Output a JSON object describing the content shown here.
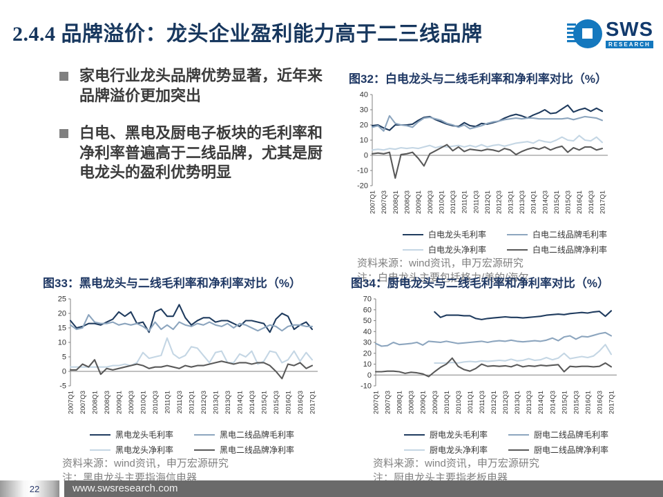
{
  "slide": {
    "title": "2.4.4 品牌溢价：龙头企业盈利能力高于二三线品牌",
    "logo": {
      "text": "SWS",
      "subtext": "RESEARCH"
    },
    "footer": {
      "page": "22",
      "url": "www.swsresearch.com"
    }
  },
  "bullets": [
    {
      "text": "家电行业龙头品牌优势显著，近年来品牌溢价更加突出"
    },
    {
      "text": "白电、黑电及厨电子板块的毛利率和净利率普遍高于二线品牌，尤其是厨电龙头的盈利优势明显"
    }
  ],
  "colors": {
    "title_navy": "#17375E",
    "figure_title_navy": "#1F3864",
    "leader_gross": "#1F3B5E",
    "second_gross": "#8CA5BE",
    "leader_net": "#C4D6E4",
    "second_net": "#595959",
    "axis_gray": "#808080",
    "source_gray": "#808080",
    "footer_bar": "#6A6A6A",
    "logo_blue": "#1478BE"
  },
  "chart_data": [
    {
      "type": "line",
      "title": "图32：白电龙头与二线毛利率和净利率对比（%）",
      "ylim": [
        -20,
        40
      ],
      "ytick_step": 10,
      "x_tick_every": 2,
      "legend_position": "bottom",
      "grid": false,
      "categories": [
        "2007Q1",
        "2007Q2",
        "2007Q3",
        "2007Q4",
        "2008Q1",
        "2008Q2",
        "2008Q3",
        "2008Q4",
        "2009Q1",
        "2009Q2",
        "2009Q3",
        "2009Q4",
        "2010Q1",
        "2010Q2",
        "2010Q3",
        "2010Q4",
        "2011Q1",
        "2011Q2",
        "2011Q3",
        "2011Q4",
        "2012Q1",
        "2012Q2",
        "2012Q3",
        "2012Q4",
        "2013Q1",
        "2013Q2",
        "2013Q3",
        "2013Q4",
        "2014Q1",
        "2014Q2",
        "2014Q3",
        "2014Q4",
        "2015Q1",
        "2015Q2",
        "2015Q3",
        "2015Q4",
        "2016Q1",
        "2016Q2",
        "2016Q3",
        "2016Q4",
        "2017Q1"
      ],
      "series": [
        {
          "name": "白电龙头毛利率",
          "color": "#1F3B5E",
          "values": [
            19.5,
            20,
            18,
            16.5,
            20,
            20,
            20,
            20.5,
            23,
            25,
            25.5,
            23.5,
            22,
            20.5,
            19.5,
            19,
            21.5,
            19.5,
            19,
            21,
            20.5,
            21.5,
            22.5,
            24.5,
            26,
            27,
            26,
            24.5,
            26.5,
            28,
            30,
            27.5,
            28,
            30.5,
            33,
            28.5,
            30,
            31,
            29,
            31,
            29
          ]
        },
        {
          "name": "白电二线品牌毛利率",
          "color": "#8CA5BE",
          "values": [
            18.5,
            19.5,
            16,
            26,
            21,
            20,
            19.5,
            18.5,
            22,
            24.5,
            25,
            24,
            23,
            21,
            20,
            18.5,
            20,
            17.5,
            18.5,
            19.5,
            21,
            22,
            22.5,
            23.5,
            24,
            24.5,
            24,
            24.5,
            24.5,
            24,
            24,
            24,
            24,
            24,
            24.5,
            23.5,
            24.5,
            25.5,
            25,
            24.5,
            23
          ]
        },
        {
          "name": "白电龙头净利率",
          "color": "#C4D6E4",
          "values": [
            3.5,
            4,
            3.5,
            4.5,
            4,
            5,
            4.5,
            5,
            4.5,
            5.5,
            6.5,
            5,
            6,
            5.5,
            6,
            6.5,
            5.5,
            6.5,
            5.5,
            7,
            5.5,
            6.5,
            7,
            6,
            7,
            8,
            8.5,
            9,
            8,
            10,
            9,
            8.5,
            10,
            12,
            10,
            9.5,
            13,
            10,
            9.5,
            12,
            8.5
          ]
        },
        {
          "name": "白电二线品牌净利率",
          "color": "#595959",
          "values": [
            1,
            1.5,
            1,
            2,
            -15,
            0.5,
            1,
            2,
            -2,
            -7,
            1,
            3,
            5,
            7,
            3,
            5.5,
            2.5,
            4,
            3.5,
            3,
            4,
            3.5,
            2.5,
            4.5,
            3.5,
            0.5,
            2.5,
            4,
            5,
            4,
            5.5,
            3.5,
            5,
            6,
            2,
            5,
            3.5,
            5.5,
            5.5,
            3.5,
            4.5
          ]
        }
      ],
      "source": "资料来源：wind资讯，申万宏源研究",
      "note": "注：白电龙头主要包括格力/美的/海尔"
    },
    {
      "type": "line",
      "title": "图33：黑电龙头与二线毛利率和净利率对比（%）",
      "ylim": [
        -5,
        25
      ],
      "ytick_step": 5,
      "x_tick_every": 2,
      "legend_position": "bottom",
      "grid": false,
      "categories": [
        "2007Q1",
        "2007Q2",
        "2007Q3",
        "2007Q4",
        "2008Q1",
        "2008Q2",
        "2008Q3",
        "2008Q4",
        "2009Q1",
        "2009Q2",
        "2009Q3",
        "2009Q4",
        "2010Q1",
        "2010Q2",
        "2010Q3",
        "2010Q4",
        "2011Q1",
        "2011Q2",
        "2011Q3",
        "2011Q4",
        "2012Q1",
        "2012Q2",
        "2012Q3",
        "2012Q4",
        "2013Q1",
        "2013Q2",
        "2013Q3",
        "2013Q4",
        "2014Q1",
        "2014Q2",
        "2014Q3",
        "2014Q4",
        "2015Q1",
        "2015Q2",
        "2015Q3",
        "2015Q4",
        "2016Q1",
        "2016Q2",
        "2016Q3",
        "2016Q4",
        "2017Q1"
      ],
      "series": [
        {
          "name": "黑电龙头毛利率",
          "color": "#1F3B5E",
          "values": [
            17.5,
            15,
            15.5,
            16.5,
            16.5,
            16,
            17,
            18,
            20.5,
            19,
            20.5,
            16.5,
            17,
            13.5,
            20.5,
            21.5,
            19,
            19,
            23,
            18.5,
            16,
            17.5,
            18.5,
            18.5,
            17,
            17.5,
            17.5,
            16.5,
            15.5,
            17.5,
            17.5,
            17,
            16.5,
            13.5,
            18,
            20,
            19,
            14.5,
            16,
            17,
            14.5
          ]
        },
        {
          "name": "黑电二线品牌毛利率",
          "color": "#8CA5BE",
          "values": [
            16,
            14.5,
            15,
            19.5,
            17,
            16.5,
            16.5,
            17,
            16,
            16.5,
            16,
            16.5,
            15.5,
            14,
            17,
            14.5,
            16,
            14.5,
            17,
            16,
            15.5,
            16.5,
            16,
            17,
            16,
            15.5,
            16.5,
            15,
            16.5,
            16,
            15,
            14,
            15,
            16,
            15.5,
            14,
            15.5,
            16,
            16,
            15.5,
            15.5
          ]
        },
        {
          "name": "黑电龙头净利率",
          "color": "#C4D6E4",
          "values": [
            1.5,
            1.5,
            1.5,
            1.5,
            1.5,
            1.5,
            1.5,
            2,
            2,
            2.5,
            2,
            3,
            6.5,
            4.5,
            5,
            5.5,
            11.5,
            6,
            4.5,
            5.5,
            8.5,
            8,
            5.5,
            3,
            6.5,
            7,
            3,
            3,
            6,
            5,
            7,
            2.5,
            3.5,
            7,
            6.5,
            3,
            4,
            7,
            3.5,
            6.5,
            4
          ]
        },
        {
          "name": "黑电二线品牌净利率",
          "color": "#595959",
          "values": [
            0.5,
            0.5,
            2.5,
            1.5,
            4,
            -1,
            1,
            0.5,
            1,
            1.5,
            2,
            2.5,
            2,
            1,
            1.5,
            1.5,
            2,
            1.5,
            1,
            2,
            1.5,
            2,
            2,
            2.5,
            3,
            3.5,
            3,
            2.5,
            3,
            3,
            2.5,
            3,
            3,
            2,
            0,
            -2.5,
            2.5,
            2,
            3,
            1,
            2
          ]
        }
      ],
      "source": "资料来源：wind资讯，申万宏源研究",
      "note": "注：黑电龙头主要指海信电器"
    },
    {
      "type": "line",
      "title": "图34：厨电龙头与二线毛利率和净利率对比（%）",
      "ylim": [
        -10,
        70
      ],
      "ytick_step": 10,
      "x_tick_every": 2,
      "legend_position": "bottom",
      "grid": false,
      "categories": [
        "2007Q1",
        "2007Q2",
        "2007Q3",
        "2007Q4",
        "2008Q1",
        "2008Q2",
        "2008Q3",
        "2008Q4",
        "2009Q1",
        "2009Q2",
        "2009Q3",
        "2009Q4",
        "2010Q1",
        "2010Q2",
        "2010Q3",
        "2010Q4",
        "2011Q1",
        "2011Q2",
        "2011Q3",
        "2011Q4",
        "2012Q1",
        "2012Q2",
        "2012Q3",
        "2012Q4",
        "2013Q1",
        "2013Q2",
        "2013Q3",
        "2013Q4",
        "2014Q1",
        "2014Q2",
        "2014Q3",
        "2014Q4",
        "2015Q1",
        "2015Q2",
        "2015Q3",
        "2015Q4",
        "2016Q1",
        "2016Q2",
        "2016Q3",
        "2016Q4",
        "2017Q1"
      ],
      "series": [
        {
          "name": "厨电龙头毛利率",
          "color": "#1F3B5E",
          "values": [
            null,
            null,
            null,
            null,
            null,
            null,
            null,
            null,
            null,
            null,
            58,
            53,
            55,
            55,
            55,
            54.5,
            54.5,
            52,
            51,
            52,
            52.5,
            53,
            53.5,
            53,
            53,
            52.5,
            53,
            53.5,
            54,
            55,
            55.5,
            56,
            55.5,
            56.5,
            57,
            57.5,
            57,
            58,
            58.5,
            54,
            59
          ]
        },
        {
          "name": "厨电二线品牌毛利率",
          "color": "#8CA5BE",
          "values": [
            29,
            26.5,
            27,
            30,
            28,
            28.5,
            29,
            30,
            27.5,
            31,
            30.5,
            30,
            31,
            30,
            29,
            29.5,
            30,
            30.5,
            31,
            30,
            31,
            31.5,
            31,
            32,
            31,
            30.5,
            31,
            31.5,
            31,
            32,
            34,
            31.5,
            35,
            36,
            33,
            35.5,
            35,
            36.5,
            38,
            39,
            36
          ]
        },
        {
          "name": "厨电龙头净利率",
          "color": "#C4D6E4",
          "values": [
            null,
            null,
            null,
            null,
            null,
            null,
            null,
            null,
            null,
            null,
            11,
            11,
            11,
            11.5,
            11,
            12,
            12.5,
            12,
            13,
            12.5,
            13,
            13.5,
            13,
            14.5,
            13,
            13.5,
            15,
            13.5,
            14,
            16,
            14,
            15.5,
            20,
            15,
            16,
            17,
            16,
            17.5,
            22,
            28,
            19
          ]
        },
        {
          "name": "厨电二线品牌净利率",
          "color": "#595959",
          "values": [
            3,
            3,
            3.5,
            3.5,
            3,
            1.5,
            2.5,
            2,
            1,
            -1.5,
            3,
            7,
            10,
            15.5,
            8,
            5,
            3.5,
            6,
            10,
            8,
            8.5,
            8,
            8.5,
            7.5,
            9.5,
            7.5,
            8.5,
            8,
            9,
            8.5,
            9,
            9.5,
            3,
            8,
            7.5,
            8,
            8,
            7.5,
            8,
            11,
            7.5
          ]
        }
      ],
      "source": "资料来源：wind资讯，申万宏源研究",
      "note": "注：厨电龙头主要指老板电器"
    }
  ]
}
